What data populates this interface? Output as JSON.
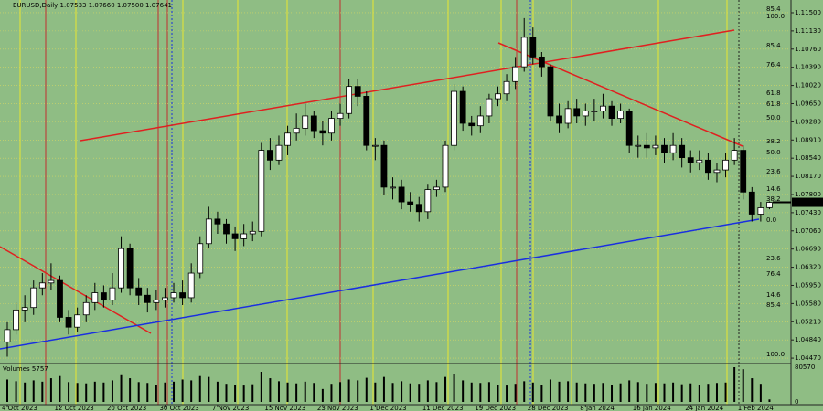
{
  "chart_data": {
    "type": "candlestick",
    "header": "EURUSD,Daily  1.07533 1.07660 1.07500 1.07641",
    "volume_title": "Volumes",
    "categories": [
      "4 Oct 2023",
      null,
      null,
      null,
      null,
      null,
      "12 Oct 2023",
      null,
      null,
      null,
      null,
      null,
      "20 Oct 2023",
      null,
      null,
      null,
      null,
      null,
      "30 Oct 2023",
      null,
      null,
      null,
      null,
      null,
      "7 Nov 2023",
      null,
      null,
      null,
      null,
      null,
      "15 Nov 2023",
      null,
      null,
      null,
      null,
      null,
      "23 Nov 2023",
      null,
      null,
      null,
      null,
      null,
      "1 Dec 2023",
      null,
      null,
      null,
      null,
      null,
      "11 Dec 2023",
      null,
      null,
      null,
      null,
      null,
      "19 Dec 2023",
      null,
      null,
      null,
      null,
      null,
      "28 Dec 2023",
      null,
      null,
      null,
      null,
      null,
      "8 Jan 2024",
      null,
      null,
      null,
      null,
      null,
      "16 Jan 2024",
      null,
      null,
      null,
      null,
      null,
      "24 Jan 2024",
      null,
      null,
      null,
      null,
      null,
      "1 Feb 2024",
      null,
      null,
      null
    ],
    "open": [
      1.048,
      1.0505,
      1.0545,
      1.055,
      1.059,
      1.06,
      1.0605,
      1.053,
      1.051,
      1.0535,
      1.056,
      1.058,
      1.0565,
      1.059,
      1.067,
      1.059,
      1.0575,
      1.056,
      1.0565,
      1.057,
      1.058,
      1.057,
      1.062,
      1.068,
      1.073,
      1.072,
      1.07,
      1.069,
      1.07,
      1.0705,
      1.087,
      1.085,
      1.088,
      1.0905,
      1.0915,
      1.094,
      1.091,
      1.0905,
      1.0935,
      1.0945,
      1.1,
      1.098,
      1.088,
      1.088,
      1.0795,
      1.0795,
      1.0765,
      1.076,
      1.0745,
      1.079,
      1.0795,
      1.088,
      1.099,
      1.0925,
      1.092,
      1.094,
      1.0975,
      1.0985,
      1.101,
      1.104,
      1.11,
      1.106,
      1.104,
      1.094,
      1.0925,
      1.0955,
      1.094,
      1.095,
      1.095,
      1.096,
      1.0935,
      1.095,
      1.088,
      1.088,
      1.0875,
      1.088,
      1.0865,
      1.088,
      1.0855,
      1.0845,
      1.085,
      1.0825,
      1.083,
      1.085,
      1.087,
      1.0785,
      1.074,
      1.07533
    ],
    "high": [
      1.052,
      1.056,
      1.0575,
      1.0605,
      1.062,
      1.064,
      1.0615,
      1.0545,
      1.055,
      1.0575,
      1.06,
      1.0595,
      1.062,
      1.0695,
      1.068,
      1.061,
      1.059,
      1.0585,
      1.059,
      1.06,
      1.0605,
      1.064,
      1.0695,
      1.0755,
      1.0745,
      1.073,
      1.0715,
      1.072,
      1.0725,
      1.0885,
      1.0895,
      1.09,
      1.092,
      1.0945,
      1.0965,
      1.095,
      1.093,
      1.095,
      1.0965,
      1.1015,
      1.1015,
      1.099,
      1.0895,
      1.089,
      1.0815,
      1.081,
      1.0785,
      1.0775,
      1.08,
      1.081,
      1.089,
      1.1005,
      1.1,
      1.094,
      1.096,
      1.0985,
      1.1,
      1.1025,
      1.106,
      1.1139,
      1.112,
      1.107,
      1.1045,
      1.0965,
      1.097,
      1.0975,
      1.0965,
      1.0975,
      1.0985,
      1.097,
      1.0965,
      1.0955,
      1.09,
      1.0905,
      1.09,
      1.0895,
      1.0905,
      1.0895,
      1.087,
      1.087,
      1.0865,
      1.0845,
      1.0865,
      1.0895,
      1.088,
      1.0795,
      1.0765,
      1.0766
    ],
    "low": [
      1.045,
      1.0495,
      1.052,
      1.0535,
      1.0575,
      1.0585,
      1.052,
      1.0495,
      1.05,
      1.052,
      1.0545,
      1.055,
      1.0555,
      1.058,
      1.0575,
      1.0555,
      1.054,
      1.0545,
      1.055,
      1.056,
      1.0555,
      1.056,
      1.061,
      1.067,
      1.07,
      1.068,
      1.0665,
      1.0675,
      1.0685,
      1.0695,
      1.083,
      1.084,
      1.086,
      1.089,
      1.09,
      1.0895,
      1.088,
      1.089,
      1.092,
      1.0935,
      1.096,
      1.087,
      1.085,
      1.078,
      1.077,
      1.075,
      1.0745,
      1.0725,
      1.073,
      1.0775,
      1.0785,
      1.087,
      1.091,
      1.09,
      1.0905,
      1.0925,
      1.096,
      1.097,
      1.0995,
      1.103,
      1.1045,
      1.102,
      1.093,
      1.0905,
      1.0915,
      1.0925,
      1.092,
      1.093,
      1.0935,
      1.092,
      1.0925,
      1.0865,
      1.0855,
      1.0855,
      1.086,
      1.0845,
      1.085,
      1.0835,
      1.0825,
      1.083,
      1.081,
      1.0805,
      1.0815,
      1.084,
      1.077,
      1.0725,
      1.0725,
      1.075
    ],
    "close": [
      1.0505,
      1.0545,
      1.055,
      1.059,
      1.06,
      1.0605,
      1.053,
      1.051,
      1.0535,
      1.056,
      1.058,
      1.0565,
      1.059,
      1.067,
      1.059,
      1.0575,
      1.056,
      1.0565,
      1.057,
      1.058,
      1.057,
      1.062,
      1.068,
      1.073,
      1.072,
      1.07,
      1.069,
      1.07,
      1.0705,
      1.087,
      1.085,
      1.088,
      1.0905,
      1.0915,
      1.094,
      1.091,
      1.0905,
      1.0935,
      1.0945,
      1.1,
      1.098,
      1.088,
      1.088,
      1.0795,
      1.0795,
      1.0765,
      1.076,
      1.0745,
      1.079,
      1.0795,
      1.088,
      1.099,
      1.0925,
      1.092,
      1.094,
      1.0975,
      1.0985,
      1.101,
      1.104,
      1.11,
      1.106,
      1.104,
      1.094,
      1.0925,
      1.0955,
      1.094,
      1.095,
      1.095,
      1.096,
      1.0935,
      1.095,
      1.088,
      1.088,
      1.0875,
      1.088,
      1.0865,
      1.088,
      1.0855,
      1.0845,
      1.085,
      1.0825,
      1.083,
      1.085,
      1.087,
      1.0785,
      1.074,
      1.0753,
      1.07641
    ],
    "volume": [
      52000,
      48000,
      45000,
      50000,
      47000,
      55000,
      60000,
      46000,
      44000,
      43000,
      47000,
      45000,
      50000,
      62000,
      55000,
      46000,
      44000,
      40000,
      45000,
      47000,
      52000,
      50000,
      60000,
      58000,
      47000,
      42000,
      40000,
      38000,
      41000,
      70000,
      55000,
      48000,
      45000,
      43000,
      47000,
      44000,
      30000,
      42000,
      46000,
      52000,
      50000,
      56000,
      45000,
      58000,
      44000,
      48000,
      43000,
      42000,
      50000,
      46000,
      58000,
      65000,
      50000,
      45000,
      44000,
      46000,
      40000,
      38000,
      42000,
      48000,
      45000,
      40000,
      52000,
      47000,
      48000,
      45000,
      43000,
      42000,
      44000,
      40000,
      43000,
      50000,
      46000,
      42000,
      44000,
      43000,
      45000,
      41000,
      43000,
      40000,
      42000,
      44000,
      45000,
      80570,
      76000,
      55000,
      42000,
      5757
    ],
    "ylim": [
      1.0436,
      1.1176
    ],
    "yticks": [
      {
        "value": 1.115,
        "label": "1.11500"
      },
      {
        "value": 1.1113,
        "label": "1.11130"
      },
      {
        "value": 1.1076,
        "label": "1.10760"
      },
      {
        "value": 1.1039,
        "label": "1.10390"
      },
      {
        "value": 1.1002,
        "label": "1.10020"
      },
      {
        "value": 1.0965,
        "label": "1.09650"
      },
      {
        "value": 1.0928,
        "label": "1.09280"
      },
      {
        "value": 1.0891,
        "label": "1.08910"
      },
      {
        "value": 1.0854,
        "label": "1.08540"
      },
      {
        "value": 1.0817,
        "label": "1.08170"
      },
      {
        "value": 1.078,
        "label": "1.07800"
      },
      {
        "value": 1.0743,
        "label": "1.07430"
      },
      {
        "value": 1.0706,
        "label": "1.07060"
      },
      {
        "value": 1.0669,
        "label": "1.06690"
      },
      {
        "value": 1.0632,
        "label": "1.06320"
      },
      {
        "value": 1.0595,
        "label": "1.05950"
      },
      {
        "value": 1.0558,
        "label": "1.05580"
      },
      {
        "value": 1.0521,
        "label": "1.05210"
      },
      {
        "value": 1.0484,
        "label": "1.04840"
      },
      {
        "value": 1.0447,
        "label": "1.04470"
      }
    ],
    "vlim": [
      0,
      80570
    ],
    "vticks": [
      80570,
      0
    ],
    "annotations": [
      {
        "text": "85.4",
        "color": "#1f3fd0"
      },
      {
        "text": "100.0",
        "color": "#d03030"
      },
      {
        "text": "85.4",
        "color": "#d03030"
      },
      {
        "text": "76.4",
        "color": "#d03030"
      },
      {
        "text": "61.8",
        "color": "#d03030"
      },
      {
        "text": "61.8",
        "color": "#1f3fd0"
      },
      {
        "text": "50.0",
        "color": "#d03030"
      },
      {
        "text": "38.2",
        "color": "#d03030"
      },
      {
        "text": "50.0",
        "color": "#1f3fd0"
      },
      {
        "text": "23.6",
        "color": "#d03030"
      },
      {
        "text": "14.6",
        "color": "#d03030"
      },
      {
        "text": "38.2",
        "color": "#1f3fd0"
      },
      {
        "text": "0.0",
        "color": "#d03030"
      },
      {
        "text": "23.6",
        "color": "#1f3fd0"
      },
      {
        "text": "76.4",
        "color": "#d8d820"
      },
      {
        "text": "14.6",
        "color": "#1f3fd0"
      },
      {
        "text": "85.4",
        "color": "#d8d820"
      },
      {
        "text": "100.0",
        "color": "#d8d820"
      }
    ]
  }
}
